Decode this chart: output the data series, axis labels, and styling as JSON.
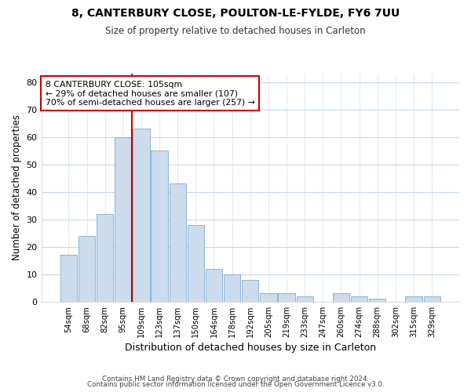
{
  "title1": "8, CANTERBURY CLOSE, POULTON-LE-FYLDE, FY6 7UU",
  "title2": "Size of property relative to detached houses in Carleton",
  "xlabel": "Distribution of detached houses by size in Carleton",
  "ylabel": "Number of detached properties",
  "categories": [
    "54sqm",
    "68sqm",
    "82sqm",
    "95sqm",
    "109sqm",
    "123sqm",
    "137sqm",
    "150sqm",
    "164sqm",
    "178sqm",
    "192sqm",
    "205sqm",
    "219sqm",
    "233sqm",
    "247sqm",
    "260sqm",
    "274sqm",
    "288sqm",
    "302sqm",
    "315sqm",
    "329sqm"
  ],
  "values": [
    17,
    24,
    32,
    60,
    63,
    55,
    43,
    28,
    12,
    10,
    8,
    3,
    3,
    2,
    0,
    3,
    2,
    1,
    0,
    2,
    2
  ],
  "bar_color": "#cddcec",
  "bar_edge_color": "#7baacf",
  "vline_index": 4,
  "vline_color": "#cc0000",
  "annotation_text": "8 CANTERBURY CLOSE: 105sqm\n← 29% of detached houses are smaller (107)\n70% of semi-detached houses are larger (257) →",
  "annotation_box_color": "#ffffff",
  "annotation_box_edge": "#cc0000",
  "ylim": [
    0,
    83
  ],
  "yticks": [
    0,
    10,
    20,
    30,
    40,
    50,
    60,
    70,
    80
  ],
  "footer1": "Contains HM Land Registry data © Crown copyright and database right 2024.",
  "footer2": "Contains public sector information licensed under the Open Government Licence v3.0.",
  "background_color": "#ffffff",
  "plot_bg_color": "#ffffff",
  "grid_color": "#c8d8e8"
}
